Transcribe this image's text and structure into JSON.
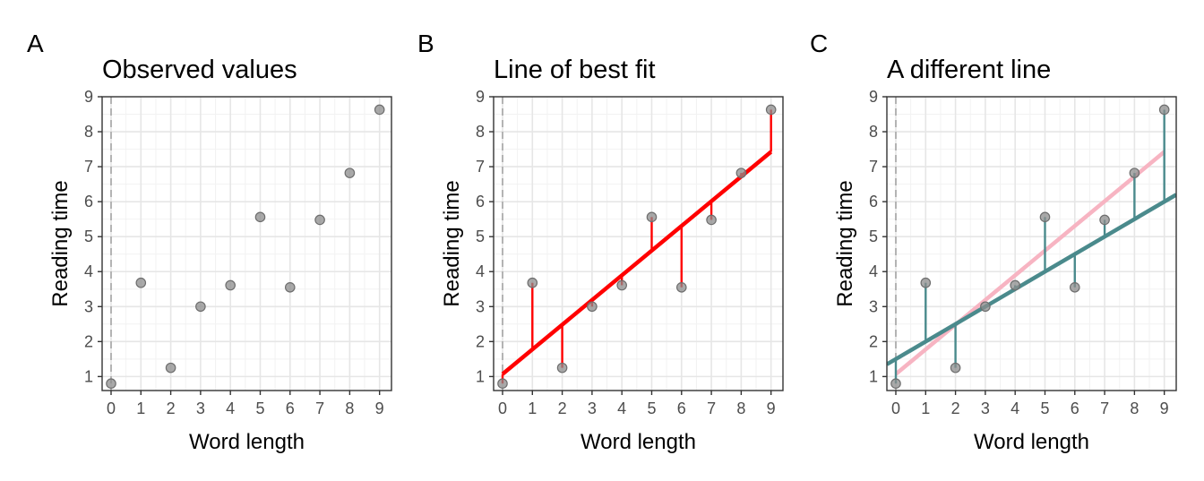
{
  "chart_data": [
    {
      "type": "scatter",
      "panel_letter": "A",
      "title": "Observed values",
      "xlabel": "Word length",
      "ylabel": "Reading time",
      "xlim": [
        -0.3,
        9.4
      ],
      "ylim": [
        0.6,
        9.0
      ],
      "x_ticks": [
        0,
        1,
        2,
        3,
        4,
        5,
        6,
        7,
        8,
        9
      ],
      "y_ticks": [
        1,
        2,
        3,
        4,
        5,
        6,
        7,
        8,
        9
      ],
      "grid": true,
      "reference_vline_x": 0,
      "points": [
        {
          "x": 0,
          "y": 0.8
        },
        {
          "x": 1,
          "y": 3.68
        },
        {
          "x": 2,
          "y": 1.25
        },
        {
          "x": 3,
          "y": 3.0
        },
        {
          "x": 4,
          "y": 3.61
        },
        {
          "x": 5,
          "y": 5.56
        },
        {
          "x": 6,
          "y": 3.55
        },
        {
          "x": 7,
          "y": 5.48
        },
        {
          "x": 8,
          "y": 6.82
        },
        {
          "x": 9,
          "y": 8.63
        }
      ],
      "point_color": "#8c8c8c"
    },
    {
      "type": "scatter",
      "panel_letter": "B",
      "title": "Line of best fit",
      "xlabel": "Word length",
      "ylabel": "Reading time",
      "xlim": [
        -0.3,
        9.4
      ],
      "ylim": [
        0.6,
        9.0
      ],
      "x_ticks": [
        0,
        1,
        2,
        3,
        4,
        5,
        6,
        7,
        8,
        9
      ],
      "y_ticks": [
        1,
        2,
        3,
        4,
        5,
        6,
        7,
        8,
        9
      ],
      "grid": true,
      "reference_vline_x": 0,
      "points": [
        {
          "x": 0,
          "y": 0.8
        },
        {
          "x": 1,
          "y": 3.68
        },
        {
          "x": 2,
          "y": 1.25
        },
        {
          "x": 3,
          "y": 3.0
        },
        {
          "x": 4,
          "y": 3.61
        },
        {
          "x": 5,
          "y": 5.56
        },
        {
          "x": 6,
          "y": 3.55
        },
        {
          "x": 7,
          "y": 5.48
        },
        {
          "x": 8,
          "y": 6.82
        },
        {
          "x": 9,
          "y": 8.63
        }
      ],
      "point_color": "#8c8c8c",
      "lines": [
        {
          "intercept": 1.07,
          "slope": 0.706,
          "x_range": [
            0,
            9
          ],
          "color": "#ff0000",
          "role": "fit"
        }
      ],
      "residuals_color": "#ff0000"
    },
    {
      "type": "scatter",
      "panel_letter": "C",
      "title": "A different line",
      "xlabel": "Word length",
      "ylabel": "Reading time",
      "xlim": [
        -0.3,
        9.4
      ],
      "ylim": [
        0.6,
        9.0
      ],
      "x_ticks": [
        0,
        1,
        2,
        3,
        4,
        5,
        6,
        7,
        8,
        9
      ],
      "y_ticks": [
        1,
        2,
        3,
        4,
        5,
        6,
        7,
        8,
        9
      ],
      "grid": true,
      "reference_vline_x": 0,
      "points": [
        {
          "x": 0,
          "y": 0.8
        },
        {
          "x": 1,
          "y": 3.68
        },
        {
          "x": 2,
          "y": 1.25
        },
        {
          "x": 3,
          "y": 3.0
        },
        {
          "x": 4,
          "y": 3.61
        },
        {
          "x": 5,
          "y": 5.56
        },
        {
          "x": 6,
          "y": 3.55
        },
        {
          "x": 7,
          "y": 5.48
        },
        {
          "x": 8,
          "y": 6.82
        },
        {
          "x": 9,
          "y": 8.63
        }
      ],
      "point_color": "#8c8c8c",
      "lines": [
        {
          "intercept": 1.07,
          "slope": 0.706,
          "x_range": [
            0,
            9
          ],
          "color": "#f7b4c2",
          "role": "best-fit"
        },
        {
          "intercept": 1.5,
          "slope": 0.5,
          "x_range": [
            -0.3,
            9.4
          ],
          "color": "#4a8a8c",
          "role": "alternative"
        }
      ],
      "residuals_color": "#4a8a8c"
    }
  ]
}
